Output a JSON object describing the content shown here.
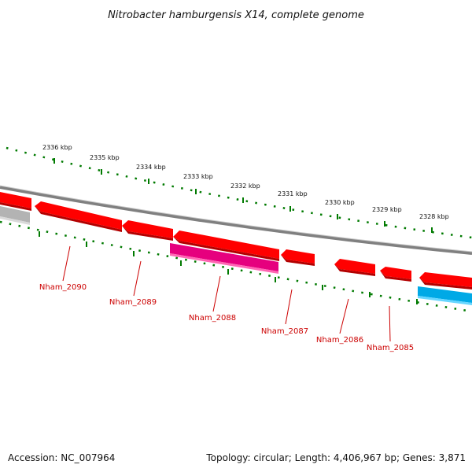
{
  "title": "Nitrobacter hamburgensis X14, complete genome",
  "footer": {
    "accession": "Accession: NC_007964",
    "info": "Topology: circular; Length: 4,406,967 bp; Genes: 3,871"
  },
  "colors": {
    "forward_gene": "#ff0000",
    "reverse_gene": "#ff0000",
    "rna_gene": "#e6007e",
    "highlight_gene": "#00a9e6",
    "pseudo_gene": "#b3b3b3",
    "backbone": "#808080",
    "tick": "#007a00",
    "label": "#cc0000"
  },
  "scale_ticks": [
    "2336 kbp",
    "2335 kbp",
    "2334 kbp",
    "2333 kbp",
    "2332 kbp",
    "2331 kbp",
    "2330 kbp",
    "2329 kbp",
    "2328 kbp"
  ],
  "gene_labels": [
    "Nham_2090",
    "Nham_2089",
    "Nham_2088",
    "Nham_2087",
    "Nham_2086",
    "Nham_2085"
  ]
}
